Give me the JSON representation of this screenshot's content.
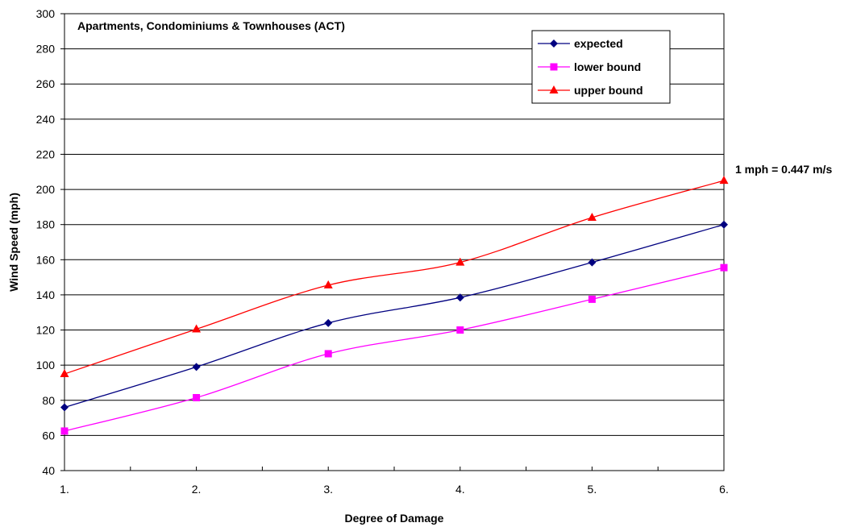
{
  "chart_data": {
    "type": "line",
    "title": "Apartments, Condominiums & Townhouses (ACT)",
    "xlabel": "Degree of Damage",
    "ylabel": "Wind Speed (mph)",
    "annotation": "1 mph = 0.447 m/s",
    "categories": [
      "1.",
      "2.",
      "3.",
      "4.",
      "5.",
      "6."
    ],
    "x": [
      1,
      2,
      3,
      4,
      5,
      6
    ],
    "xlim": [
      1,
      6
    ],
    "ylim": [
      40,
      300
    ],
    "yticks": [
      40,
      60,
      80,
      100,
      120,
      140,
      160,
      180,
      200,
      220,
      240,
      260,
      280,
      300
    ],
    "grid": true,
    "legend_position": "top-right",
    "series": [
      {
        "name": "expected",
        "values": [
          76,
          99,
          124,
          138.5,
          158.5,
          180
        ],
        "color": "#000080",
        "marker": "diamond"
      },
      {
        "name": "lower bound",
        "values": [
          62.5,
          81.5,
          106.5,
          120,
          137.5,
          155.5
        ],
        "color": "#ff00ff",
        "marker": "square"
      },
      {
        "name": "upper bound",
        "values": [
          95,
          120.5,
          145.5,
          158.5,
          184,
          205
        ],
        "color": "#ff0000",
        "marker": "triangle"
      }
    ]
  }
}
